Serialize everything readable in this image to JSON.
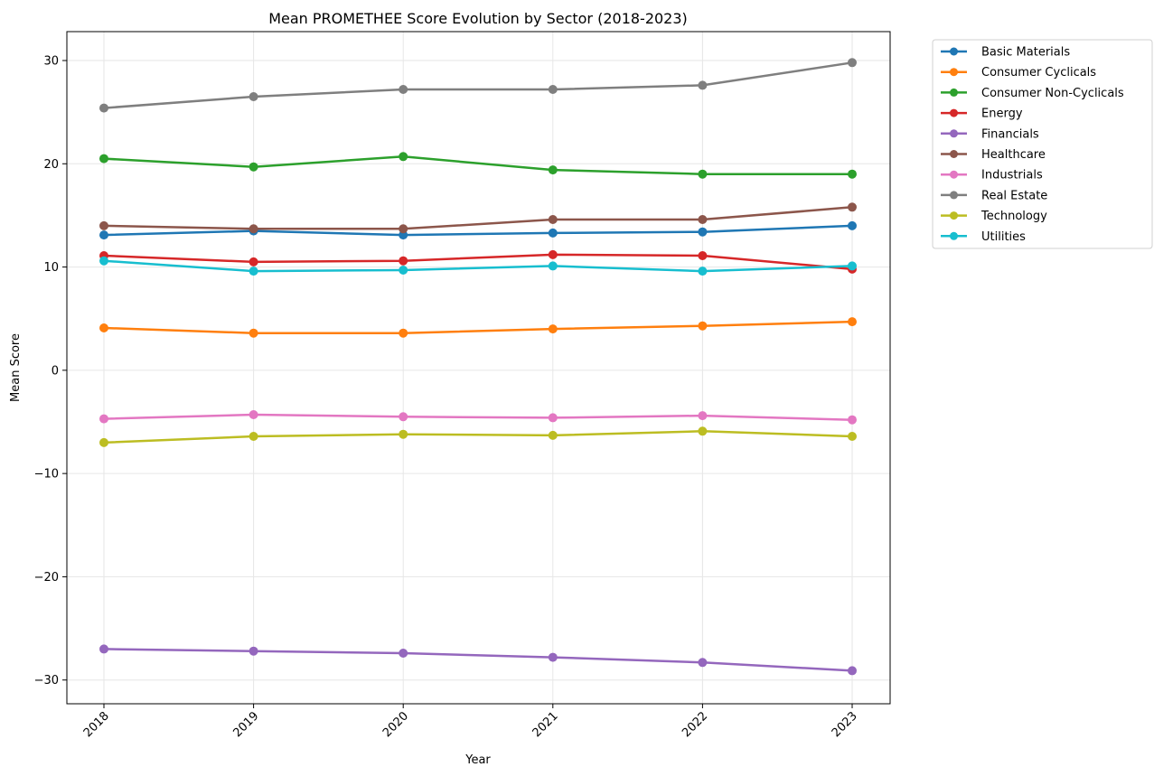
{
  "chart_data": {
    "type": "line",
    "title": "Mean PROMETHEE Score Evolution by Sector (2018-2023)",
    "xlabel": "Year",
    "ylabel": "Mean Score",
    "x": [
      "2018",
      "2019",
      "2020",
      "2021",
      "2022",
      "2023"
    ],
    "ylim": [
      -32.3,
      32.8
    ],
    "yticks": [
      30,
      20,
      10,
      0,
      -10,
      -20,
      -30
    ],
    "ytick_labels": [
      "30",
      "20",
      "10",
      "0",
      "−10",
      "−20",
      "−30"
    ],
    "grid": true,
    "legend_position": "outside-top-right",
    "marker": "circle",
    "series": [
      {
        "name": "Basic Materials",
        "color": "#1f77b4",
        "values": [
          13.1,
          13.5,
          13.1,
          13.3,
          13.4,
          14.0
        ]
      },
      {
        "name": "Consumer Cyclicals",
        "color": "#ff7f0e",
        "values": [
          4.1,
          3.6,
          3.6,
          4.0,
          4.3,
          4.7
        ]
      },
      {
        "name": "Consumer Non-Cyclicals",
        "color": "#2ca02c",
        "values": [
          20.5,
          19.7,
          20.7,
          19.4,
          19.0,
          19.0
        ]
      },
      {
        "name": "Energy",
        "color": "#d62728",
        "values": [
          11.1,
          10.5,
          10.6,
          11.2,
          11.1,
          9.8
        ]
      },
      {
        "name": "Financials",
        "color": "#9467bd",
        "values": [
          -27.0,
          -27.2,
          -27.4,
          -27.8,
          -28.3,
          -29.1
        ]
      },
      {
        "name": "Healthcare",
        "color": "#8c564b",
        "values": [
          14.0,
          13.7,
          13.7,
          14.6,
          14.6,
          15.8
        ]
      },
      {
        "name": "Industrials",
        "color": "#e377c2",
        "values": [
          -4.7,
          -4.3,
          -4.5,
          -4.6,
          -4.4,
          -4.8
        ]
      },
      {
        "name": "Real Estate",
        "color": "#7f7f7f",
        "values": [
          25.4,
          26.5,
          27.2,
          27.2,
          27.6,
          29.8
        ]
      },
      {
        "name": "Technology",
        "color": "#bcbd22",
        "values": [
          -7.0,
          -6.4,
          -6.2,
          -6.3,
          -5.9,
          -6.4
        ]
      },
      {
        "name": "Utilities",
        "color": "#17becf",
        "values": [
          10.6,
          9.6,
          9.7,
          10.1,
          9.6,
          10.1
        ]
      }
    ]
  }
}
